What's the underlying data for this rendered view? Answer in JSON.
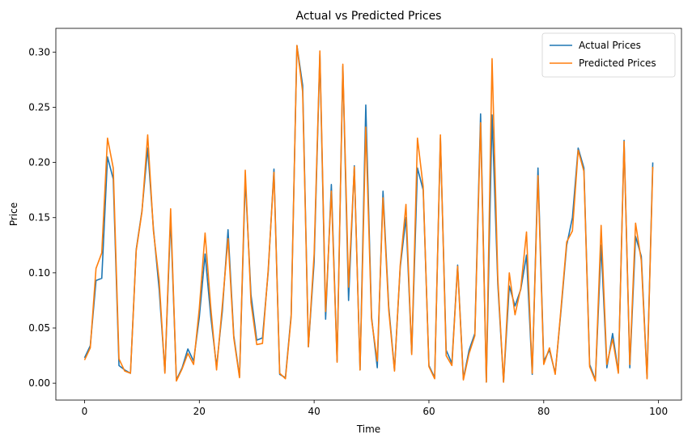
{
  "chart_data": {
    "type": "line",
    "title": "Actual vs Predicted Prices",
    "xlabel": "Time",
    "ylabel": "Price",
    "xlim": [
      -5,
      104
    ],
    "ylim": [
      -0.0153,
      0.3215
    ],
    "xticks": [
      0,
      20,
      40,
      60,
      80,
      100
    ],
    "yticks": [
      0.0,
      0.05,
      0.1,
      0.15,
      0.2,
      0.25,
      0.3
    ],
    "xtick_labels": [
      "0",
      "20",
      "40",
      "60",
      "80",
      "100"
    ],
    "ytick_labels": [
      "0.00",
      "0.05",
      "0.10",
      "0.15",
      "0.20",
      "0.25",
      "0.30"
    ],
    "grid": false,
    "legend_position": "top-right",
    "series": [
      {
        "name": "Actual Prices",
        "color": "#1f77b4",
        "values": [
          0.023,
          0.034,
          0.093,
          0.095,
          0.205,
          0.185,
          0.016,
          0.012,
          0.009,
          0.121,
          0.156,
          0.213,
          0.14,
          0.085,
          0.01,
          0.15,
          0.003,
          0.014,
          0.031,
          0.02,
          0.06,
          0.117,
          0.06,
          0.015,
          0.065,
          0.139,
          0.043,
          0.006,
          0.185,
          0.08,
          0.039,
          0.041,
          0.101,
          0.194,
          0.008,
          0.005,
          0.062,
          0.306,
          0.27,
          0.033,
          0.11,
          0.298,
          0.058,
          0.18,
          0.02,
          0.287,
          0.075,
          0.197,
          0.012,
          0.252,
          0.06,
          0.014,
          0.174,
          0.069,
          0.012,
          0.105,
          0.15,
          0.027,
          0.195,
          0.175,
          0.016,
          0.005,
          0.222,
          0.03,
          0.018,
          0.107,
          0.004,
          0.03,
          0.045,
          0.244,
          0.001,
          0.243,
          0.09,
          0.001,
          0.088,
          0.07,
          0.085,
          0.116,
          0.008,
          0.195,
          0.02,
          0.03,
          0.009,
          0.065,
          0.125,
          0.15,
          0.213,
          0.195,
          0.017,
          0.003,
          0.125,
          0.014,
          0.045,
          0.01,
          0.22,
          0.014,
          0.133,
          0.115,
          0.005,
          0.2
        ]
      },
      {
        "name": "Predicted Prices",
        "color": "#ff7f0e",
        "values": [
          0.021,
          0.032,
          0.104,
          0.118,
          0.222,
          0.195,
          0.022,
          0.011,
          0.009,
          0.12,
          0.155,
          0.225,
          0.138,
          0.093,
          0.009,
          0.158,
          0.002,
          0.013,
          0.027,
          0.017,
          0.068,
          0.136,
          0.068,
          0.012,
          0.07,
          0.131,
          0.041,
          0.005,
          0.193,
          0.073,
          0.035,
          0.036,
          0.103,
          0.191,
          0.009,
          0.004,
          0.06,
          0.306,
          0.264,
          0.033,
          0.117,
          0.301,
          0.065,
          0.174,
          0.019,
          0.289,
          0.087,
          0.196,
          0.012,
          0.232,
          0.058,
          0.02,
          0.168,
          0.066,
          0.011,
          0.107,
          0.162,
          0.026,
          0.222,
          0.178,
          0.015,
          0.004,
          0.225,
          0.025,
          0.016,
          0.106,
          0.003,
          0.027,
          0.043,
          0.236,
          0.001,
          0.294,
          0.095,
          0.001,
          0.1,
          0.062,
          0.086,
          0.137,
          0.009,
          0.188,
          0.017,
          0.032,
          0.008,
          0.067,
          0.128,
          0.138,
          0.211,
          0.192,
          0.015,
          0.002,
          0.143,
          0.017,
          0.04,
          0.009,
          0.219,
          0.017,
          0.145,
          0.111,
          0.004,
          0.196
        ]
      }
    ]
  }
}
